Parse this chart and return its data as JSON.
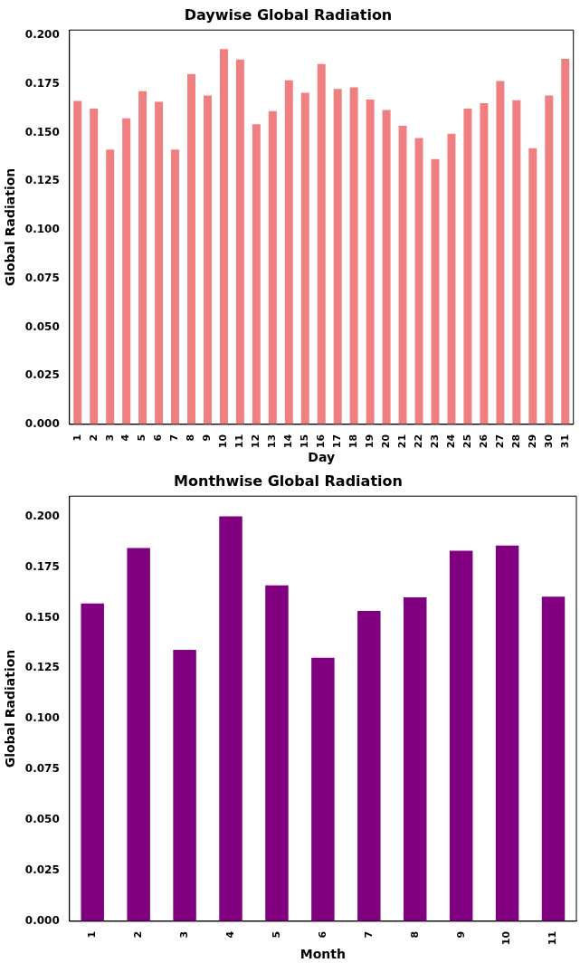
{
  "chart_data": [
    {
      "type": "bar",
      "title": "Daywise Global Radiation",
      "xlabel": "Day",
      "ylabel": "Global Radiation",
      "categories": [
        "1",
        "2",
        "3",
        "4",
        "5",
        "6",
        "7",
        "8",
        "9",
        "10",
        "11",
        "12",
        "13",
        "14",
        "15",
        "16",
        "17",
        "18",
        "19",
        "20",
        "21",
        "22",
        "23",
        "24",
        "25",
        "26",
        "27",
        "28",
        "29",
        "30",
        "31"
      ],
      "values": [
        0.1664,
        0.1624,
        0.1413,
        0.1574,
        0.1713,
        0.1659,
        0.1413,
        0.1802,
        0.1692,
        0.193,
        0.1877,
        0.1544,
        0.1611,
        0.1769,
        0.1706,
        0.1853,
        0.1725,
        0.1733,
        0.167,
        0.1617,
        0.1536,
        0.1473,
        0.1364,
        0.1495,
        0.1624,
        0.1652,
        0.1766,
        0.1667,
        0.142,
        0.1692,
        0.188
      ],
      "color": "#f08080",
      "ylim": [
        0,
        0.2028
      ],
      "yticks": [
        {
          "value": 0,
          "label": "0.000"
        },
        {
          "value": 0.025,
          "label": "0.025"
        },
        {
          "value": 0.05,
          "label": "0.050"
        },
        {
          "value": 0.075,
          "label": "0.075"
        },
        {
          "value": 0.1,
          "label": "0.100"
        },
        {
          "value": 0.125,
          "label": "0.125"
        },
        {
          "value": 0.15,
          "label": "0.150"
        },
        {
          "value": 0.175,
          "label": "0.175"
        },
        {
          "value": 0.2,
          "label": "0.200"
        }
      ],
      "grid": false,
      "legend": false
    },
    {
      "type": "bar",
      "title": "Monthwise Global Radiation",
      "xlabel": "Month",
      "ylabel": "Global Radiation",
      "categories": [
        "1",
        "2",
        "3",
        "4",
        "5",
        "6",
        "7",
        "8",
        "9",
        "10",
        "11"
      ],
      "values": [
        0.157,
        0.1844,
        0.1341,
        0.2,
        0.1659,
        0.1302,
        0.1533,
        0.16,
        0.183,
        0.1856,
        0.1604
      ],
      "color": "#800080",
      "ylim": [
        0,
        0.21
      ],
      "yticks": [
        {
          "value": 0,
          "label": "0.000"
        },
        {
          "value": 0.025,
          "label": "0.025"
        },
        {
          "value": 0.05,
          "label": "0.050"
        },
        {
          "value": 0.075,
          "label": "0.075"
        },
        {
          "value": 0.1,
          "label": "0.100"
        },
        {
          "value": 0.125,
          "label": "0.125"
        },
        {
          "value": 0.15,
          "label": "0.150"
        },
        {
          "value": 0.175,
          "label": "0.175"
        },
        {
          "value": 0.2,
          "label": "0.200"
        }
      ],
      "grid": false,
      "legend": false
    }
  ]
}
